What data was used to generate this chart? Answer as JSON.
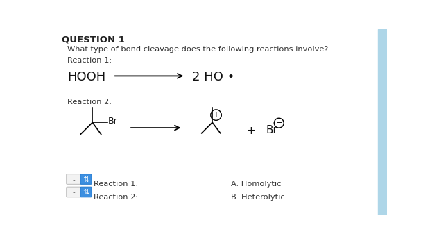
{
  "background_color": "#ffffff",
  "title": "QUESTION 1",
  "title_fontsize": 9.5,
  "question_text": "What type of bond cleavage does the following reactions involve?",
  "question_fontsize": 8.2,
  "reaction1_label": "Reaction 1:",
  "reaction2_label": "Reaction 2:",
  "label_fontsize": 8.2,
  "reactant1": "HOOH",
  "reactant1_fontsize": 13,
  "product1": "2 HO •",
  "product1_fontsize": 13,
  "answer_label1": "A. Homolytic",
  "answer_label2": "B. Heterolytic",
  "answer_fontsize": 8.2,
  "dropdown_label1": "Reaction 1:",
  "dropdown_label2": "Reaction 2:",
  "dropdown_fontsize": 8.2,
  "sidebar_color": "#aed6e8",
  "dropdown_bg": "#f5f5f5",
  "dropdown_arrow_bg": "#3d8fe0",
  "br_fontsize": 9,
  "plus_fontsize": 11
}
